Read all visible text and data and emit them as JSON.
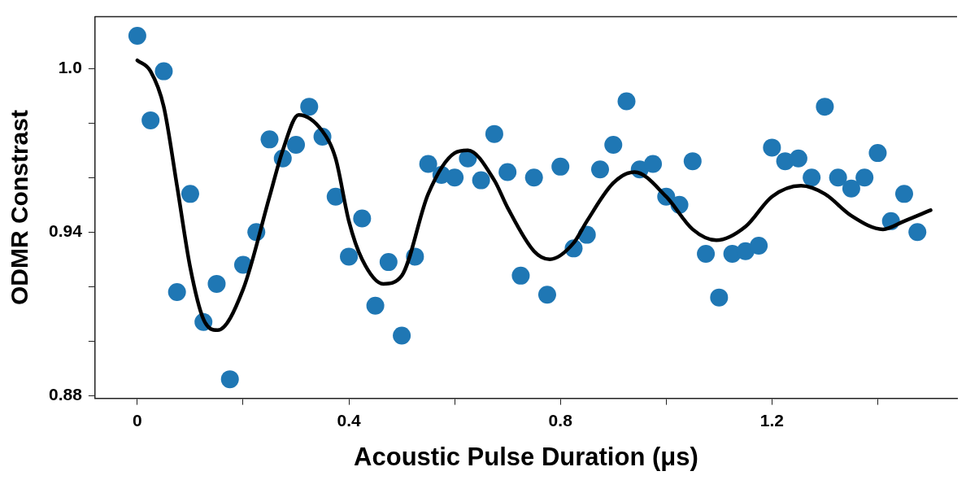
{
  "chart_data": {
    "type": "scatter",
    "xlabel": "Acoustic Pulse Duration (μs)",
    "ylabel": "ODMR Constrast",
    "xlim": [
      -0.08,
      1.55
    ],
    "ylim": [
      0.879,
      1.019
    ],
    "xticks": [
      0,
      {
        "value": 0.2,
        "label": null
      },
      0.4,
      {
        "value": 0.6,
        "label": null
      },
      0.8,
      {
        "value": 1.0,
        "label": null
      },
      1.2,
      {
        "value": 1.4,
        "label": null
      }
    ],
    "yticks": [
      0.88,
      {
        "value": 0.9,
        "label": null
      },
      {
        "value": 0.92,
        "label": null
      },
      0.94,
      {
        "value": 0.96,
        "label": null
      },
      {
        "value": 0.98,
        "label": null
      },
      {
        "value": 1.0,
        "label": "1.0"
      }
    ],
    "grid": false,
    "legend": false,
    "series": [
      {
        "marker": "circle",
        "color": "#1f77b4",
        "x": [
          0,
          0.025,
          0.05,
          0.075,
          0.1,
          0.125,
          0.15,
          0.175,
          0.2,
          0.225,
          0.25,
          0.275,
          0.3,
          0.325,
          0.35,
          0.375,
          0.4,
          0.425,
          0.45,
          0.475,
          0.5,
          0.525,
          0.55,
          0.575,
          0.6,
          0.625,
          0.65,
          0.675,
          0.7,
          0.725,
          0.75,
          0.775,
          0.8,
          0.825,
          0.85,
          0.875,
          0.9,
          0.925,
          0.95,
          0.975,
          1.0,
          1.025,
          1.05,
          1.075,
          1.1,
          1.125,
          1.15,
          1.175,
          1.2,
          1.225,
          1.25,
          1.275,
          1.3,
          1.325,
          1.35,
          1.375,
          1.4,
          1.425,
          1.45,
          1.475
        ],
        "values": [
          1.012,
          0.981,
          0.999,
          0.918,
          0.954,
          0.907,
          0.921,
          0.886,
          0.928,
          0.94,
          0.974,
          0.967,
          0.972,
          0.986,
          0.975,
          0.953,
          0.931,
          0.945,
          0.913,
          0.929,
          0.902,
          0.931,
          0.965,
          0.961,
          0.96,
          0.967,
          0.959,
          0.976,
          0.962,
          0.924,
          0.96,
          0.917,
          0.964,
          0.934,
          0.939,
          0.963,
          0.972,
          0.988,
          0.963,
          0.965,
          0.953,
          0.95,
          0.966,
          0.932,
          0.916,
          0.932,
          0.933,
          0.935,
          0.971,
          0.966,
          0.967,
          0.96,
          0.986,
          0.96,
          0.956,
          0.96,
          0.969,
          0.944,
          0.954,
          0.94
        ]
      },
      {
        "type": "line",
        "marker": "none",
        "line_style": "solid",
        "color": "#000000",
        "x": [
          0,
          0.025,
          0.05,
          0.075,
          0.1,
          0.125,
          0.152,
          0.2,
          0.25,
          0.275,
          0.305,
          0.35,
          0.375,
          0.4,
          0.425,
          0.465,
          0.5,
          0.55,
          0.6,
          0.625,
          0.675,
          0.7,
          0.75,
          0.78,
          0.825,
          0.85,
          0.9,
          0.94,
          1.0,
          1.05,
          1.095,
          1.15,
          1.2,
          1.255,
          1.3,
          1.35,
          1.41,
          1.45,
          1.5
        ],
        "values": [
          1.003,
          0.999,
          0.986,
          0.957,
          0.927,
          0.908,
          0.904,
          0.919,
          0.953,
          0.97,
          0.983,
          0.977,
          0.967,
          0.944,
          0.93,
          0.921,
          0.924,
          0.954,
          0.969,
          0.97,
          0.959,
          0.949,
          0.933,
          0.93,
          0.936,
          0.944,
          0.958,
          0.962,
          0.953,
          0.941,
          0.937,
          0.942,
          0.953,
          0.957,
          0.954,
          0.946,
          0.941,
          0.944,
          0.948
        ]
      }
    ]
  }
}
